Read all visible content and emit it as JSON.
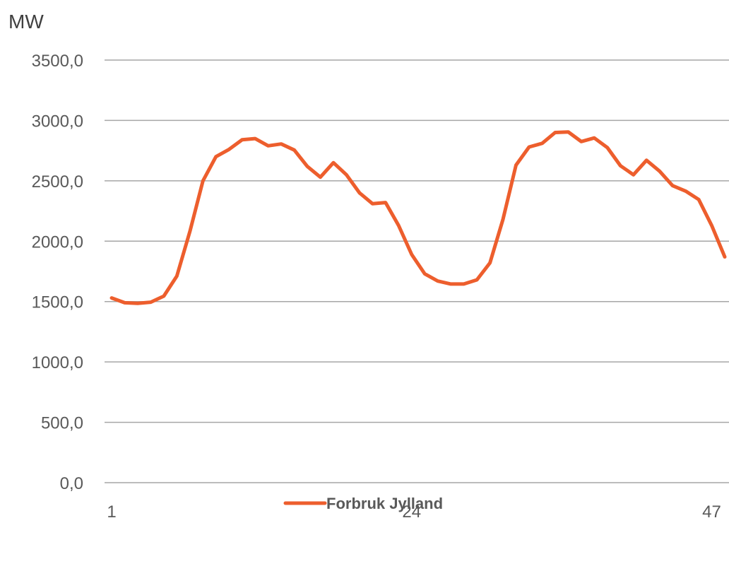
{
  "chart_data": {
    "type": "line",
    "ylabel": "MW",
    "ylim": [
      0,
      3500
    ],
    "y_ticks": [
      "0,0",
      "500,0",
      "1000,0",
      "1500,0",
      "2000,0",
      "2500,0",
      "3000,0",
      "3500,0"
    ],
    "x_tick_labels": [
      "1",
      "24",
      "47"
    ],
    "x": [
      1,
      2,
      3,
      4,
      5,
      6,
      7,
      8,
      9,
      10,
      11,
      12,
      13,
      14,
      15,
      16,
      17,
      18,
      19,
      20,
      21,
      22,
      23,
      24,
      25,
      26,
      27,
      28,
      29,
      30,
      31,
      32,
      33,
      34,
      35,
      36,
      37,
      38,
      39,
      40,
      41,
      42,
      43,
      44,
      45,
      46,
      47,
      48
    ],
    "grid": true,
    "legend_position": "bottom",
    "series": [
      {
        "name": "Forbruk Jylland",
        "color": "#ed5e2d",
        "values": [
          1530,
          1490,
          1485,
          1495,
          1545,
          1710,
          2080,
          2500,
          2700,
          2760,
          2840,
          2850,
          2790,
          2805,
          2755,
          2620,
          2530,
          2650,
          2550,
          2400,
          2310,
          2320,
          2130,
          1890,
          1730,
          1670,
          1645,
          1645,
          1680,
          1820,
          2180,
          2630,
          2780,
          2810,
          2900,
          2905,
          2825,
          2855,
          2775,
          2625,
          2550,
          2670,
          2580,
          2460,
          2415,
          2345,
          2130,
          1870
        ]
      }
    ]
  }
}
